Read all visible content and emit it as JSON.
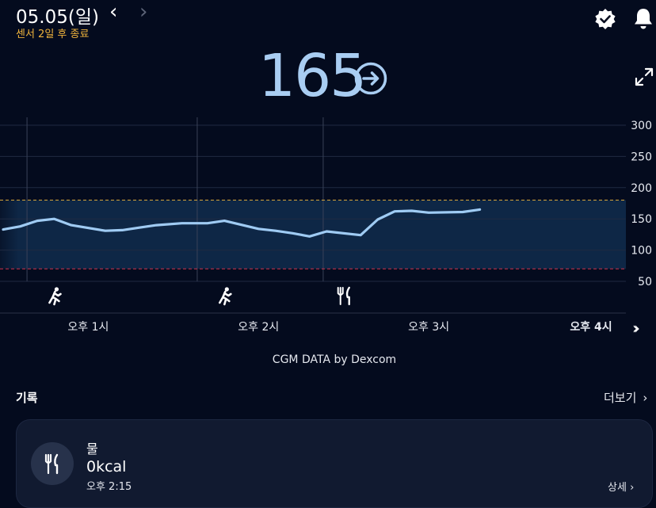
{
  "header": {
    "date": "05.05(일)",
    "sensor_status": "센서 2일 후 종료",
    "prev_glyph": "‹",
    "next_glyph": "›"
  },
  "current": {
    "value": "165"
  },
  "chart_data": {
    "type": "line",
    "ylim": [
      40,
      300
    ],
    "yticks": [
      300,
      250,
      200,
      150,
      100,
      50
    ],
    "target_range": [
      70,
      180
    ],
    "xlabels": [
      "오후 1시",
      "오후 2시",
      "오후 3시",
      "오후 4시"
    ],
    "series": [
      {
        "x": [
          12.5,
          12.6,
          12.7,
          12.8,
          12.9,
          13.1,
          13.2,
          13.3,
          13.4,
          13.55,
          13.7,
          13.8,
          14.0,
          14.1,
          14.2,
          14.3,
          14.4,
          14.6,
          14.7,
          14.8,
          14.9,
          15.0,
          15.2,
          15.3
        ],
        "y": [
          133,
          138,
          147,
          150,
          140,
          131,
          132,
          136,
          140,
          143,
          143,
          147,
          134,
          131,
          127,
          122,
          130,
          124,
          149,
          162,
          163,
          160,
          161,
          165
        ]
      }
    ],
    "activity_markers": [
      {
        "icon": "running-icon",
        "x": 12.8
      },
      {
        "icon": "running-icon",
        "x": 13.8
      },
      {
        "icon": "fork-knife-icon",
        "x": 14.5
      }
    ]
  },
  "source_label": "CGM DATA by Dexcom",
  "records": {
    "title": "기록",
    "see_more": "더보기",
    "items": [
      {
        "icon": "fork-knife-icon",
        "title": "물",
        "kcal": "0kcal",
        "time": "오후 2:15",
        "detail": "상세"
      }
    ]
  }
}
